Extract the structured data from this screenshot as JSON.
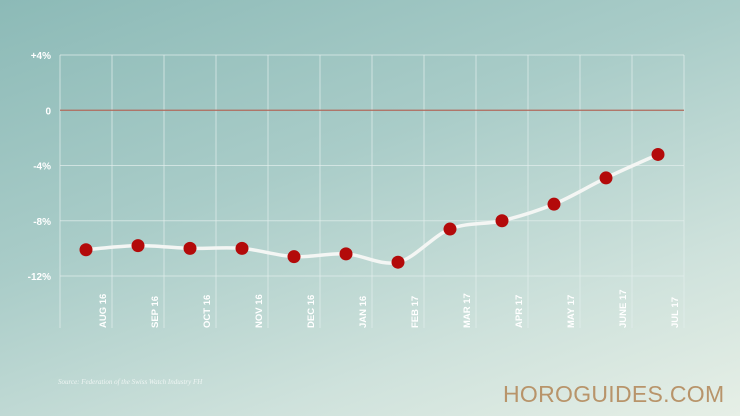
{
  "chart_data": {
    "type": "line",
    "categories": [
      "AUG 16",
      "SEP 16",
      "OCT 16",
      "NOV 16",
      "DEC 16",
      "JAN 16",
      "FEB 17",
      "MAR 17",
      "APR 17",
      "MAY 17",
      "JUNE 17",
      "JUL 17"
    ],
    "values": [
      -10.1,
      -9.8,
      -10.0,
      -10.0,
      -10.6,
      -10.4,
      -11.0,
      -8.6,
      -8.0,
      -6.8,
      -4.9,
      -3.2
    ],
    "yticks": [
      {
        "value": 4,
        "label": "+4%"
      },
      {
        "value": 0,
        "label": "0"
      },
      {
        "value": -4,
        "label": "-4%"
      },
      {
        "value": -8,
        "label": "-8%"
      },
      {
        "value": -12,
        "label": "-12%"
      }
    ],
    "ylim": [
      -12,
      4
    ],
    "grid": true,
    "colors": {
      "line": "#f4f6f4",
      "marker": "#b30a0a",
      "zero_line": "#b06a5c",
      "zero_label": "#b30a0a",
      "grid": "#e3eeec"
    }
  },
  "source": "Source: Federation of the Swiss Watch Industry FH",
  "brand": "HOROGUIDES.COM"
}
